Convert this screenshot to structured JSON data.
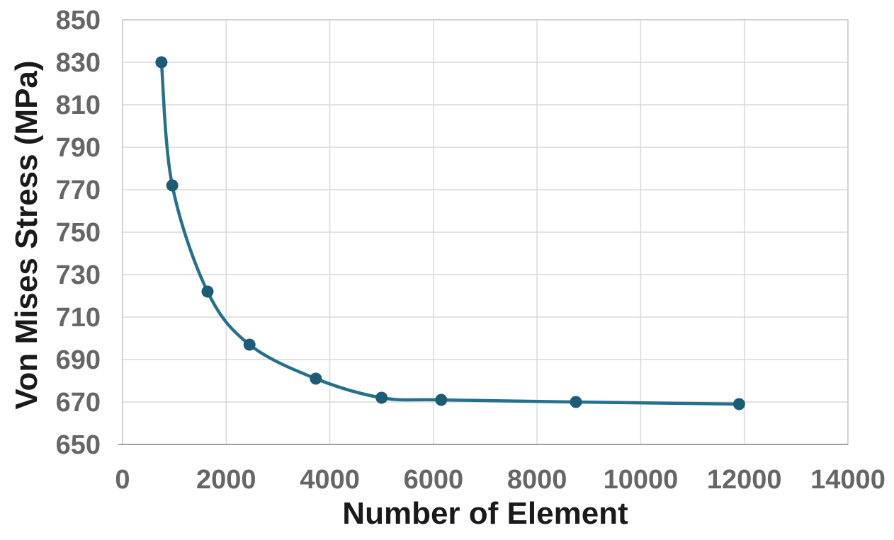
{
  "chart_data": {
    "type": "line",
    "title": "",
    "xlabel": "Number of Element",
    "ylabel": "Von Mises Stress (MPa)",
    "x": [
      750,
      960,
      1640,
      2450,
      3730,
      5000,
      6150,
      8750,
      11900
    ],
    "y": [
      830,
      772,
      722,
      697,
      681,
      672,
      671,
      670,
      669
    ],
    "xlim": [
      0,
      14000
    ],
    "ylim": [
      650,
      850
    ],
    "xticks": [
      0,
      2000,
      4000,
      6000,
      8000,
      10000,
      12000,
      14000
    ],
    "yticks": [
      650,
      670,
      690,
      710,
      730,
      750,
      770,
      790,
      810,
      830,
      850
    ],
    "grid": true,
    "legend": "none",
    "smooth": true,
    "colors": {
      "line": "#26708E",
      "marker": "#1D5C77",
      "grid": "#D9D9D9",
      "plot_border": "#C9C9C9",
      "axis_line": "#A0A0A0",
      "tick_label": "#666666",
      "axis_title": "#1A1A1A",
      "background": "#FFFFFF"
    }
  }
}
